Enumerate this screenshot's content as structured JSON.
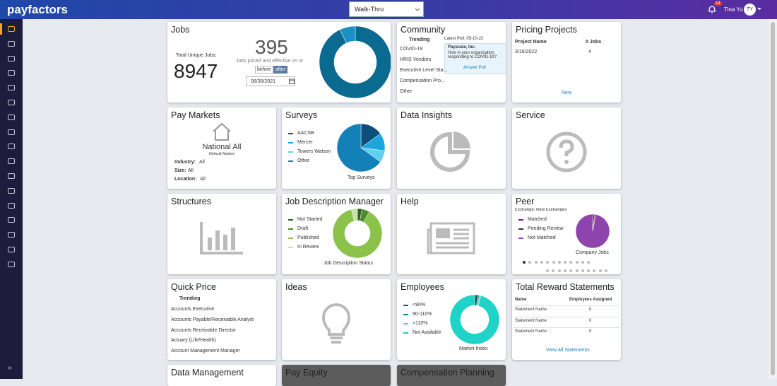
{
  "header": {
    "logo": "payfactors",
    "workspace": "Walk-Thru",
    "notifications": "14",
    "user": "Tina Yu",
    "initials": "TY"
  },
  "tiles": {
    "jobs": {
      "title": "Jobs",
      "total_label": "Total Unique Jobs:",
      "total": 8947,
      "priced": 395,
      "priced_label": "Jobs priced and effective on or",
      "before": "before",
      "after": "after",
      "date": "06/30/2021",
      "chart": {
        "values": [
          93,
          7
        ],
        "colors": [
          "#0b6a8f",
          "#1a90c6"
        ]
      }
    },
    "community": {
      "title": "Community",
      "trending": "Trending",
      "items": [
        "COVID-19",
        "HRIS Vendors",
        "Executive Level Sta...",
        "Compensation Pro...",
        "Other"
      ],
      "latest_poll": "Latest Poll: 05-10-22",
      "poll_org": "Payscale, Inc.",
      "poll_question": "How is your organization responding to COVID-19?",
      "poll_button": "Answer Poll"
    },
    "pricing": {
      "title": "Pricing Projects",
      "headers": [
        "Project Name",
        "# Jobs"
      ],
      "rows": [
        [
          "3/16/2022",
          4
        ]
      ],
      "link": "New"
    },
    "pay_markets": {
      "title": "Pay Markets",
      "market": "National All",
      "market_note": "Default Market",
      "rows": [
        [
          "Industry:",
          "All"
        ],
        [
          "Size:",
          "All"
        ],
        [
          "Location:",
          "All"
        ]
      ]
    },
    "surveys": {
      "title": "Surveys",
      "legend": [
        "AACSB",
        "Mercer",
        "Towers Watson",
        "Other"
      ],
      "colors": [
        "#0d4f78",
        "#1aa7e0",
        "#5fd0f0",
        "#1480b8"
      ],
      "values": [
        15,
        12,
        8,
        65
      ],
      "caption": "Top Surveys"
    },
    "data_insights": {
      "title": "Data Insights"
    },
    "service": {
      "title": "Service"
    },
    "structures": {
      "title": "Structures"
    },
    "jdm": {
      "title": "Job Description Manager",
      "legend": [
        "Not Started",
        "Draft",
        "Published",
        "In Review"
      ],
      "colors": [
        "#2e5e1f",
        "#4e8a2e",
        "#8bc34a",
        "#c5e1a5"
      ],
      "values": [
        3,
        5,
        88,
        4
      ],
      "caption": "Job Description Status"
    },
    "help": {
      "title": "Help"
    },
    "peer": {
      "title": "Peer",
      "subtitle": "Exchange: New Exchanges",
      "legend": [
        "Matched",
        "Pending Review",
        "Not Matched"
      ],
      "colors": [
        "#6a1b9a",
        "#333333",
        "#8e44ad"
      ],
      "values": [
        2,
        1,
        97
      ],
      "caption": "Company Jobs"
    },
    "quick_price": {
      "title": "Quick Price",
      "trending": "Trending",
      "items": [
        "Accounts Executive",
        "Accounts Payable/Receivable Analyst",
        "Accounts Receivable Director",
        "Actuary (Life/Health)",
        "Account Management Manager"
      ]
    },
    "ideas": {
      "title": "Ideas"
    },
    "employees": {
      "title": "Employees",
      "legend": [
        "<90%",
        "90-110%",
        ">110%",
        "Not Available"
      ],
      "colors": [
        "#0a5c55",
        "#13857a",
        "#4fd6cc",
        "#1fd3c8"
      ],
      "values": [
        2,
        1,
        1,
        96
      ],
      "caption": "Market Index"
    },
    "trs": {
      "title": "Total Reward Statements",
      "headers": [
        "Name",
        "Employees Assigned"
      ],
      "rows": [
        [
          "Statement Name",
          0
        ],
        [
          "Statement Name",
          0
        ],
        [
          "Statement Name",
          0
        ]
      ],
      "link": "View All Statements"
    },
    "data_management": {
      "title": "Data Management"
    },
    "pay_equity": {
      "title": "Pay Equity"
    },
    "comp_planning": {
      "title": "Compensation Planning"
    }
  }
}
